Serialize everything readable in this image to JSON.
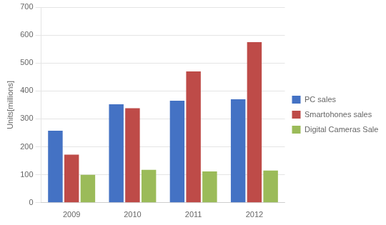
{
  "chart_data": {
    "type": "bar",
    "categories": [
      "2009",
      "2010",
      "2011",
      "2012"
    ],
    "series": [
      {
        "name": "PC sales",
        "color": "#4472C4",
        "values": [
          258,
          352,
          365,
          370
        ]
      },
      {
        "name": "Smartohones sales",
        "color": "#BE4B48",
        "values": [
          172,
          338,
          470,
          575
        ]
      },
      {
        "name": "Digital Cameras Sale",
        "color": "#9BBB59",
        "values": [
          100,
          118,
          112,
          115
        ]
      }
    ],
    "ylabel": "Units[millions]",
    "ylim": [
      0,
      700
    ],
    "yticks": [
      0,
      100,
      200,
      300,
      400,
      500,
      600,
      700
    ],
    "grid": true,
    "legend": "right"
  }
}
